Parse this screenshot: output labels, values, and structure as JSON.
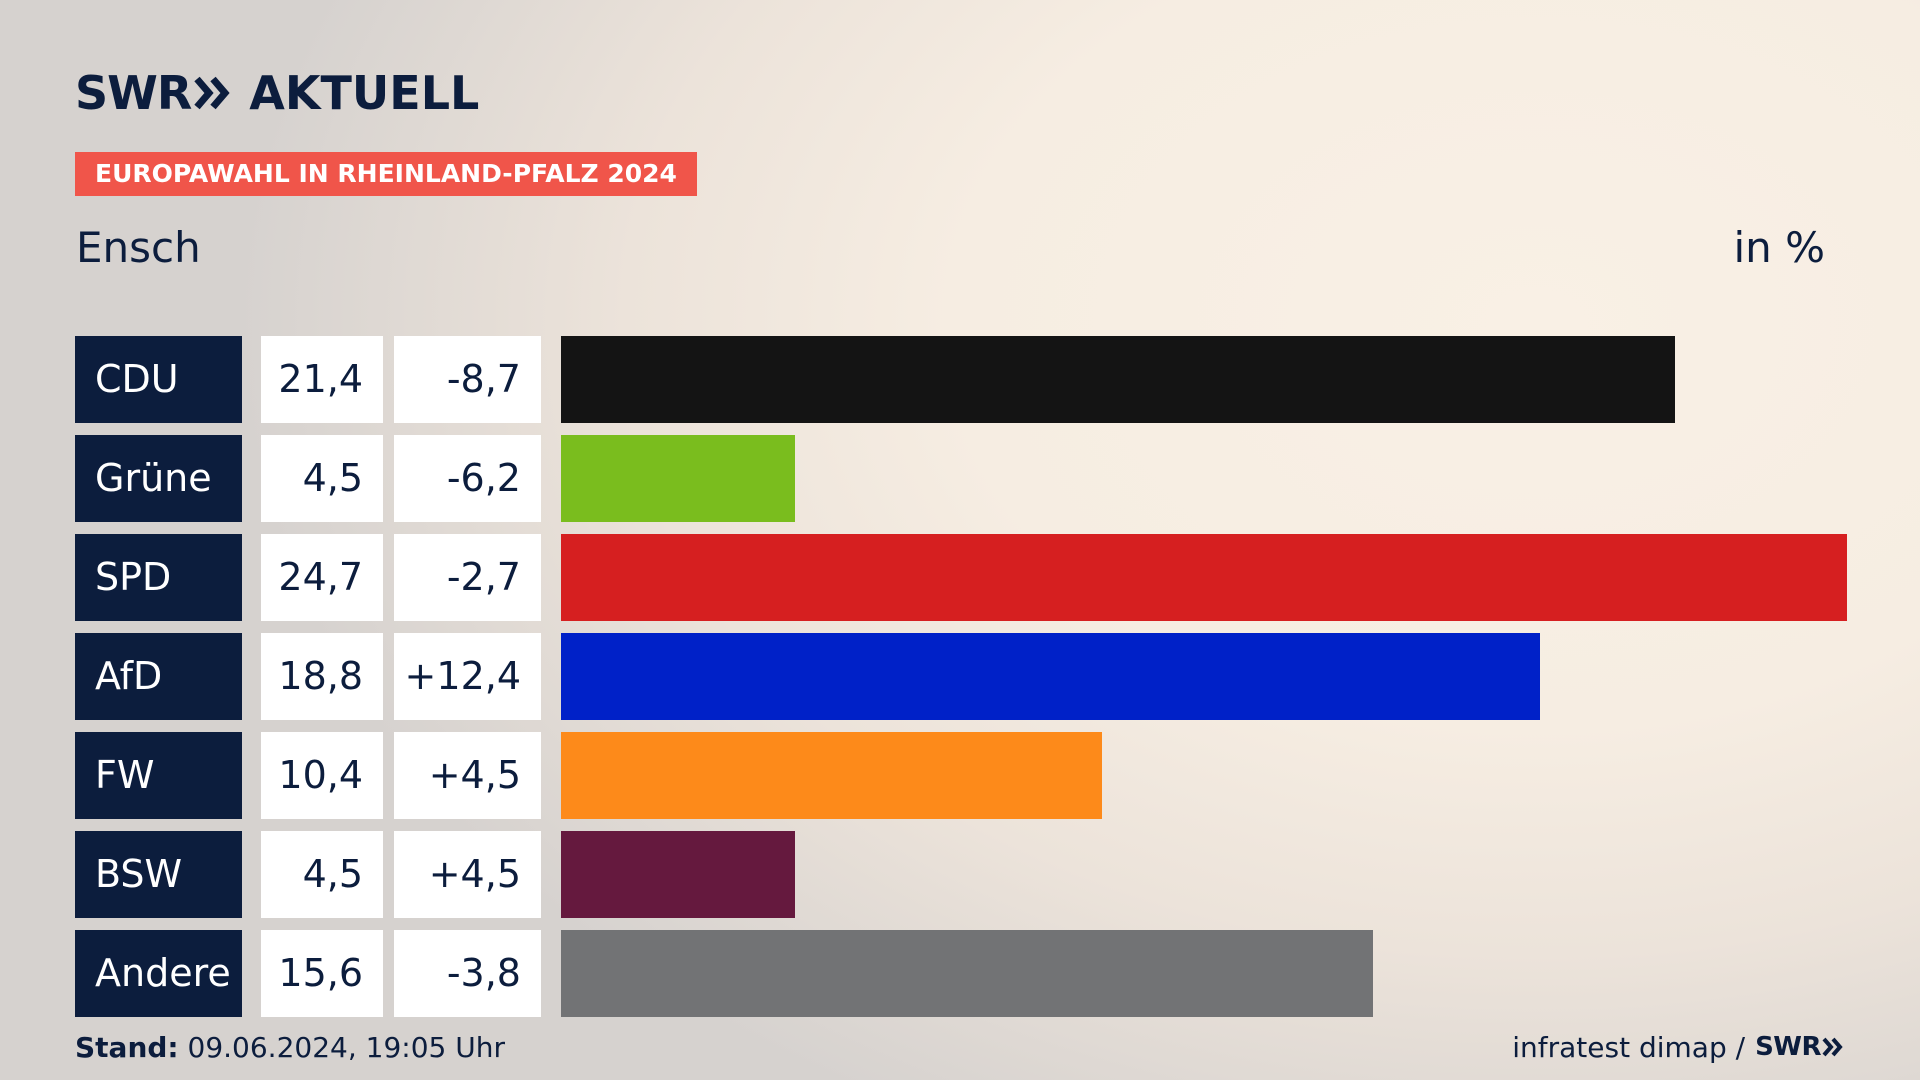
{
  "header": {
    "logo_swr": "SWR",
    "logo_aktuell": "AKTUELL",
    "banner": "EUROPAWAHL IN RHEINLAND-PFALZ 2024",
    "place": "Ensch",
    "unit": "in %"
  },
  "chart_data": {
    "type": "bar",
    "orientation": "horizontal",
    "title": "EUROPAWAHL IN RHEINLAND-PFALZ 2024",
    "subtitle": "Ensch",
    "unit": "in %",
    "xlim": [
      0,
      24.7
    ],
    "categories": [
      "CDU",
      "Grüne",
      "SPD",
      "AfD",
      "FW",
      "BSW",
      "Andere"
    ],
    "values": [
      21.4,
      4.5,
      24.7,
      18.8,
      10.4,
      4.5,
      15.6
    ],
    "value_labels": [
      "21,4",
      "4,5",
      "24,7",
      "18,8",
      "10,4",
      "4,5",
      "15,6"
    ],
    "change_labels": [
      "-8,7",
      "-6,2",
      "-2,7",
      "+12,4",
      "+4,5",
      "+4,5",
      "-3,8"
    ],
    "colors": [
      "#141414",
      "#7abd1e",
      "#d61f20",
      "#0021c8",
      "#fd8a1a",
      "#65193e",
      "#727375"
    ]
  },
  "footer": {
    "stand_label": "Stand:",
    "stand_value": " 09.06.2024, 19:05 Uhr",
    "source": "infratest dimap /",
    "source_swr": "SWR"
  }
}
